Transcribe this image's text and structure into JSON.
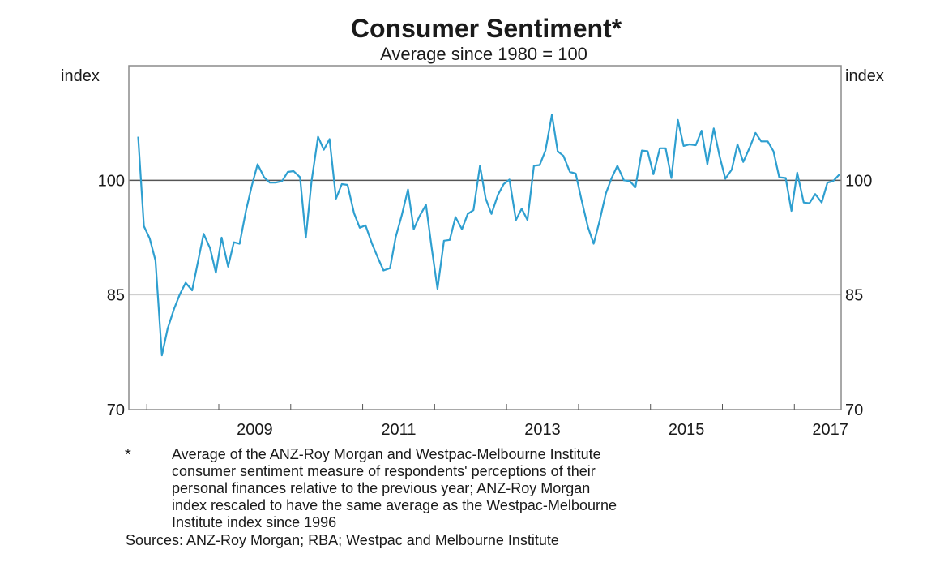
{
  "chart_data": {
    "type": "line",
    "title": "Consumer Sentiment*",
    "subtitle": "Average since 1980 = 100",
    "left_unit": "index",
    "right_unit": "index",
    "ylim": [
      70,
      115
    ],
    "yticks": [
      70,
      85,
      100
    ],
    "xlim": [
      2007.75,
      2017.65
    ],
    "xticks": [
      2009,
      2011,
      2013,
      2015,
      2017
    ],
    "reference_line": 100,
    "grid": "horizontal at 85 and 100",
    "series": [
      {
        "color": "#2e9fd0",
        "x": [
          2007.88,
          2007.96,
          2008.04,
          2008.12,
          2008.21,
          2008.29,
          2008.38,
          2008.46,
          2008.54,
          2008.63,
          2008.71,
          2008.79,
          2008.88,
          2008.96,
          2009.04,
          2009.13,
          2009.21,
          2009.29,
          2009.38,
          2009.46,
          2009.54,
          2009.63,
          2009.71,
          2009.79,
          2009.88,
          2009.96,
          2010.04,
          2010.13,
          2010.21,
          2010.29,
          2010.38,
          2010.46,
          2010.54,
          2010.63,
          2010.71,
          2010.79,
          2010.88,
          2010.96,
          2011.04,
          2011.13,
          2011.21,
          2011.29,
          2011.38,
          2011.46,
          2011.54,
          2011.63,
          2011.71,
          2011.79,
          2011.88,
          2011.96,
          2012.04,
          2012.13,
          2012.21,
          2012.29,
          2012.38,
          2012.46,
          2012.54,
          2012.63,
          2012.71,
          2012.79,
          2012.88,
          2012.96,
          2013.04,
          2013.13,
          2013.21,
          2013.29,
          2013.38,
          2013.46,
          2013.54,
          2013.63,
          2013.71,
          2013.79,
          2013.88,
          2013.96,
          2014.04,
          2014.13,
          2014.21,
          2014.29,
          2014.38,
          2014.46,
          2014.54,
          2014.63,
          2014.71,
          2014.79,
          2014.88,
          2014.96,
          2015.04,
          2015.13,
          2015.21,
          2015.29,
          2015.38,
          2015.46,
          2015.54,
          2015.63,
          2015.71,
          2015.79,
          2015.88,
          2015.96,
          2016.04,
          2016.13,
          2016.21,
          2016.29,
          2016.38,
          2016.46,
          2016.54,
          2016.63,
          2016.71,
          2016.79,
          2016.88,
          2016.96,
          2017.04,
          2017.13,
          2017.21,
          2017.29,
          2017.38,
          2017.46,
          2017.54,
          2017.63
        ],
        "values": [
          105.7,
          94,
          92.4,
          89.5,
          77.1,
          80.6,
          83.2,
          85.1,
          86.6,
          85.6,
          89.3,
          93,
          91.1,
          87.9,
          92.5,
          88.7,
          91.9,
          91.7,
          96.1,
          99.3,
          102.1,
          100.4,
          99.7,
          99.7,
          99.9,
          101.1,
          101.2,
          100.4,
          92.5,
          99.9,
          105.7,
          104,
          105.4,
          97.6,
          99.5,
          99.4,
          95.7,
          93.8,
          94.1,
          91.7,
          89.9,
          88.2,
          88.5,
          92.6,
          95.3,
          98.8,
          93.6,
          95.3,
          96.8,
          91.1,
          85.8,
          92.1,
          92.2,
          95.2,
          93.6,
          95.6,
          96.1,
          101.9,
          97.6,
          95.6,
          98.1,
          99.5,
          100.1,
          94.8,
          96.3,
          94.8,
          101.9,
          102,
          103.9,
          108.6,
          103.8,
          103.2,
          101.1,
          100.9,
          97.5,
          93.9,
          91.7,
          94.6,
          98.3,
          100.3,
          101.9,
          100,
          99.9,
          99.1,
          103.9,
          103.8,
          100.8,
          104.2,
          104.2,
          100.3,
          107.9,
          104.5,
          104.7,
          104.6,
          106.5,
          102.1,
          106.8,
          103.2,
          100.2,
          101.4,
          104.7,
          102.4,
          104.3,
          106.2,
          105.1,
          105.1,
          103.8,
          100.4,
          100.3,
          96,
          101,
          97.1,
          97,
          98.2,
          97.1,
          99.7,
          99.9,
          100.8
        ]
      }
    ]
  },
  "footnote": {
    "marker": "*",
    "lines": [
      "Average of the ANZ-Roy Morgan and Westpac-Melbourne Institute",
      "consumer sentiment measure of respondents' perceptions of their",
      "personal finances relative to the previous year; ANZ-Roy Morgan",
      "index rescaled to have the same average as the Westpac-Melbourne",
      "Institute index since 1996"
    ]
  },
  "sources": "Sources: ANZ-Roy Morgan; RBA; Westpac and Melbourne Institute"
}
